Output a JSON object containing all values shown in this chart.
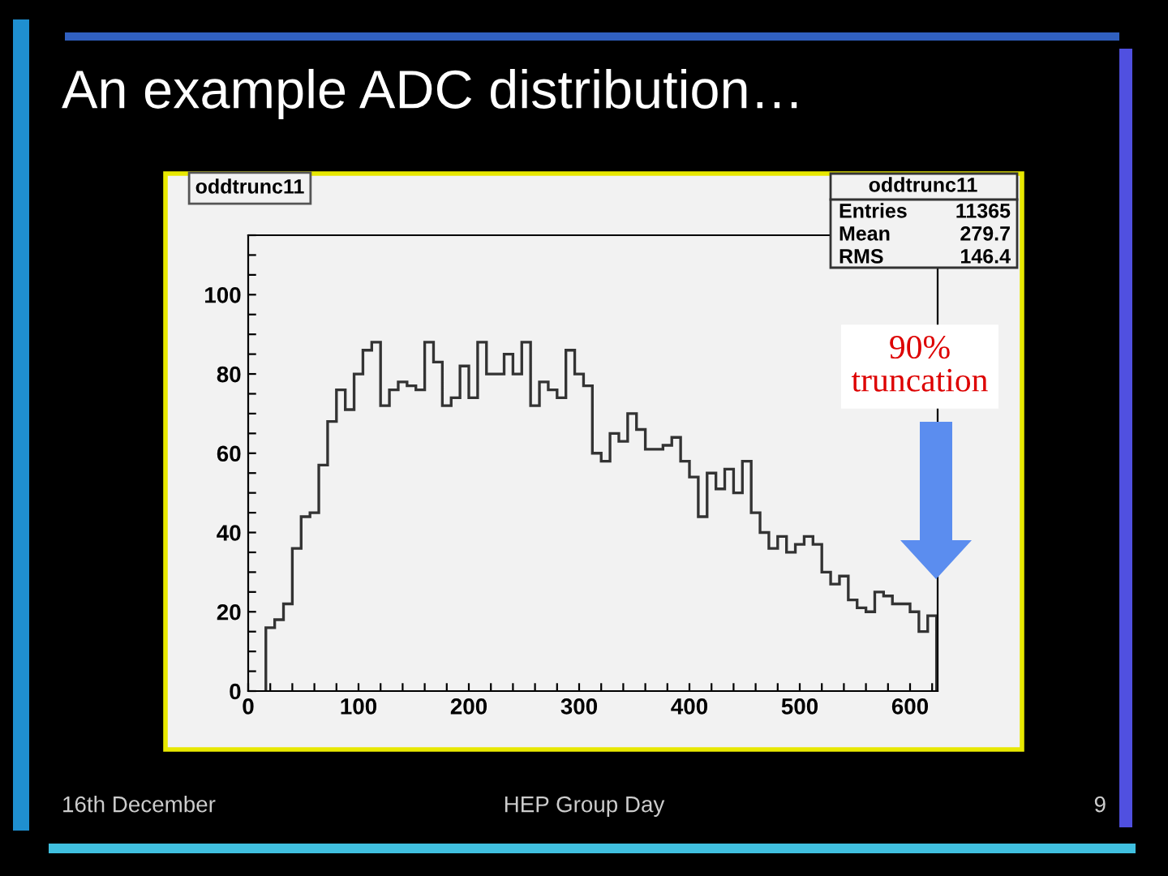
{
  "chart_data": {
    "type": "histogram",
    "title": "An example ADC distribution…",
    "subtitle": "oddtrunc11",
    "bins": [
      16,
      24,
      32,
      40,
      48,
      56,
      64,
      72,
      80,
      88,
      96,
      104,
      112,
      120,
      128,
      136,
      144,
      152,
      160,
      168,
      176,
      184,
      192,
      200,
      208,
      216,
      224,
      232,
      240,
      248,
      256,
      264,
      272,
      280,
      288,
      296,
      304,
      312,
      320,
      328,
      336,
      344,
      352,
      360,
      368,
      376,
      384,
      392,
      400,
      408,
      416,
      424,
      432,
      440,
      448,
      456,
      464,
      472,
      480,
      488,
      496,
      504,
      512,
      520,
      528,
      536,
      544,
      552,
      560,
      568,
      576,
      584,
      592,
      600,
      608,
      616,
      624
    ],
    "values": [
      16,
      18,
      22,
      36,
      44,
      45,
      57,
      68,
      76,
      71,
      80,
      86,
      88,
      72,
      76,
      78,
      77,
      76,
      88,
      83,
      72,
      74,
      82,
      74,
      88,
      80,
      80,
      85,
      80,
      88,
      72,
      78,
      76,
      74,
      86,
      80,
      77,
      60,
      58,
      65,
      63,
      70,
      66,
      61,
      61,
      62,
      64,
      58,
      54,
      44,
      55,
      51,
      56,
      50,
      58,
      45,
      40,
      36,
      39,
      35,
      37,
      39,
      37,
      30,
      27,
      29,
      23,
      21,
      20,
      25,
      24,
      22,
      22,
      20,
      15,
      19
    ],
    "color": "#333333",
    "xlim": [
      0,
      625
    ],
    "ylim": [
      0,
      115
    ],
    "xticks": [
      0,
      {
        "value": 20,
        "label": null
      },
      {
        "value": 40,
        "label": null
      },
      {
        "value": 60,
        "label": null
      },
      {
        "value": 80,
        "label": null
      },
      100,
      {
        "value": 120,
        "label": null
      },
      {
        "value": 140,
        "label": null
      },
      {
        "value": 160,
        "label": null
      },
      {
        "value": 180,
        "label": null
      },
      200,
      {
        "value": 220,
        "label": null
      },
      {
        "value": 240,
        "label": null
      },
      {
        "value": 260,
        "label": null
      },
      {
        "value": 280,
        "label": null
      },
      300,
      {
        "value": 320,
        "label": null
      },
      {
        "value": 340,
        "label": null
      },
      {
        "value": 360,
        "label": null
      },
      {
        "value": 380,
        "label": null
      },
      400,
      {
        "value": 420,
        "label": null
      },
      {
        "value": 440,
        "label": null
      },
      {
        "value": 460,
        "label": null
      },
      {
        "value": 480,
        "label": null
      },
      500,
      {
        "value": 520,
        "label": null
      },
      {
        "value": 540,
        "label": null
      },
      {
        "value": 560,
        "label": null
      },
      {
        "value": 580,
        "label": null
      },
      600,
      {
        "value": 620,
        "label": null
      }
    ],
    "yticks": [
      0,
      {
        "value": 5,
        "label": null
      },
      {
        "value": 10,
        "label": null
      },
      {
        "value": 15,
        "label": null
      },
      20,
      {
        "value": 25,
        "label": null
      },
      {
        "value": 30,
        "label": null
      },
      {
        "value": 35,
        "label": null
      },
      40,
      {
        "value": 45,
        "label": null
      },
      {
        "value": 50,
        "label": null
      },
      {
        "value": 55,
        "label": null
      },
      60,
      {
        "value": 65,
        "label": null
      },
      {
        "value": 70,
        "label": null
      },
      {
        "value": 75,
        "label": null
      },
      80,
      {
        "value": 85,
        "label": null
      },
      {
        "value": 90,
        "label": null
      },
      {
        "value": 95,
        "label": null
      },
      100,
      {
        "value": 105,
        "label": null
      },
      {
        "value": 110,
        "label": null
      },
      {
        "value": 115,
        "label": null
      }
    ],
    "grid": false,
    "legend": false,
    "annotations": [
      "oddtrunc11",
      "Entries",
      "11365",
      "Mean",
      "279.7",
      "RMS",
      "146.4",
      "90%\ntruncation",
      "16th December",
      "HEP Group Day",
      "9"
    ]
  }
}
